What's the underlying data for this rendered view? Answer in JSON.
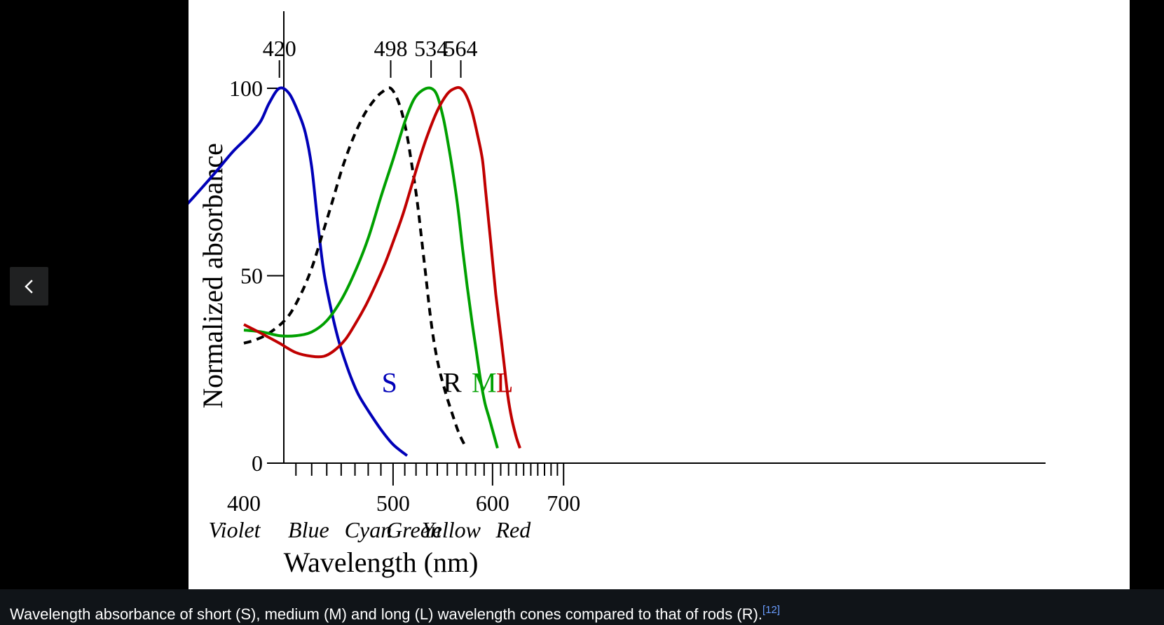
{
  "viewer": {
    "caption": "Wavelength absorbance of short (S), medium (M) and long (L) wavelength cones compared to that of rods (R).",
    "reference": "[12]",
    "prev_icon": "chevron-left-icon",
    "colors": {
      "background": "#000000",
      "caption_bar": "#101418",
      "link": "#6b9eff"
    }
  },
  "chart_data": {
    "type": "line",
    "title": "",
    "xlabel": "Wavelength (nm)",
    "ylabel": "Normalized absorbance",
    "xlim": [
      353,
      700
    ],
    "ylim": [
      0,
      100
    ],
    "x_ticks": [
      400,
      500,
      600,
      700
    ],
    "y_ticks": [
      0,
      50,
      100
    ],
    "grid": false,
    "color_bands": [
      {
        "label": "Violet",
        "x": 395
      },
      {
        "label": "Blue",
        "x": 438
      },
      {
        "label": "Cyan",
        "x": 480
      },
      {
        "label": "Green",
        "x": 518
      },
      {
        "label": "Yellow",
        "x": 554
      },
      {
        "label": "Red",
        "x": 626
      }
    ],
    "peaks": [
      {
        "label": "420",
        "x": 420
      },
      {
        "label": "498",
        "x": 498
      },
      {
        "label": "534",
        "x": 534
      },
      {
        "label": "564",
        "x": 564
      }
    ],
    "series": [
      {
        "name": "S",
        "color": "#0000b8",
        "dashed": false,
        "label_at": [
          497,
          19
        ],
        "points": [
          [
            355,
            59
          ],
          [
            362,
            63
          ],
          [
            370,
            68
          ],
          [
            378,
            73
          ],
          [
            386,
            78
          ],
          [
            394,
            83
          ],
          [
            402,
            87
          ],
          [
            409,
            91
          ],
          [
            414,
            96
          ],
          [
            420,
            100
          ],
          [
            426,
            98.5
          ],
          [
            432,
            93
          ],
          [
            436,
            88
          ],
          [
            440,
            79
          ],
          [
            444,
            64
          ],
          [
            448,
            51
          ],
          [
            453,
            41
          ],
          [
            458,
            33
          ],
          [
            463,
            27
          ],
          [
            468,
            22
          ],
          [
            473,
            18
          ],
          [
            480,
            14
          ],
          [
            490,
            9
          ],
          [
            500,
            5
          ],
          [
            512,
            2
          ]
        ]
      },
      {
        "name": "R",
        "color": "#000000",
        "dashed": true,
        "label_at": [
          555,
          19
        ],
        "points": [
          [
            400,
            32
          ],
          [
            407,
            33
          ],
          [
            415,
            35
          ],
          [
            425,
            39
          ],
          [
            433,
            45
          ],
          [
            440,
            52
          ],
          [
            447,
            61
          ],
          [
            454,
            70
          ],
          [
            461,
            79
          ],
          [
            469,
            87
          ],
          [
            477,
            93
          ],
          [
            485,
            97
          ],
          [
            491,
            99
          ],
          [
            498,
            100
          ],
          [
            505,
            96
          ],
          [
            511,
            89
          ],
          [
            516,
            80
          ],
          [
            521,
            70
          ],
          [
            525,
            60
          ],
          [
            529,
            50
          ],
          [
            533,
            40
          ],
          [
            537,
            32
          ],
          [
            542,
            25
          ],
          [
            548,
            19
          ],
          [
            554,
            14
          ],
          [
            562,
            8
          ],
          [
            570,
            4
          ]
        ]
      },
      {
        "name": "M",
        "color": "#00a000",
        "dashed": false,
        "label_at": [
          590,
          19
        ],
        "points": [
          [
            400,
            35.5
          ],
          [
            410,
            35
          ],
          [
            420,
            34
          ],
          [
            430,
            34
          ],
          [
            440,
            35
          ],
          [
            450,
            38
          ],
          [
            460,
            43.5
          ],
          [
            470,
            51
          ],
          [
            480,
            60
          ],
          [
            490,
            71
          ],
          [
            500,
            81
          ],
          [
            510,
            91
          ],
          [
            518,
            97
          ],
          [
            526,
            99.5
          ],
          [
            534,
            100
          ],
          [
            540,
            98
          ],
          [
            546,
            92
          ],
          [
            551,
            85
          ],
          [
            556,
            77
          ],
          [
            561,
            68
          ],
          [
            566,
            57
          ],
          [
            571,
            47
          ],
          [
            576,
            38
          ],
          [
            581,
            30
          ],
          [
            586,
            22
          ],
          [
            591,
            16
          ],
          [
            596,
            12
          ],
          [
            601,
            8
          ],
          [
            606,
            4
          ]
        ]
      },
      {
        "name": "L",
        "color": "#c00000",
        "dashed": false,
        "label_at": [
          615,
          19
        ],
        "points": [
          [
            400,
            37
          ],
          [
            410,
            34.5
          ],
          [
            420,
            32
          ],
          [
            430,
            29.5
          ],
          [
            440,
            28.5
          ],
          [
            448,
            28.5
          ],
          [
            455,
            30
          ],
          [
            463,
            33
          ],
          [
            470,
            37
          ],
          [
            478,
            42
          ],
          [
            485,
            47
          ],
          [
            493,
            53
          ],
          [
            500,
            59
          ],
          [
            508,
            66
          ],
          [
            515,
            73
          ],
          [
            522,
            80
          ],
          [
            530,
            87
          ],
          [
            540,
            94
          ],
          [
            550,
            98.5
          ],
          [
            558,
            100
          ],
          [
            564,
            100
          ],
          [
            570,
            98
          ],
          [
            576,
            94
          ],
          [
            582,
            88
          ],
          [
            588,
            81
          ],
          [
            592,
            72
          ],
          [
            596,
            63
          ],
          [
            600,
            54
          ],
          [
            604,
            45
          ],
          [
            609,
            36
          ],
          [
            614,
            27
          ],
          [
            619,
            18
          ],
          [
            624,
            12
          ],
          [
            630,
            7
          ],
          [
            635,
            4
          ]
        ]
      }
    ]
  }
}
